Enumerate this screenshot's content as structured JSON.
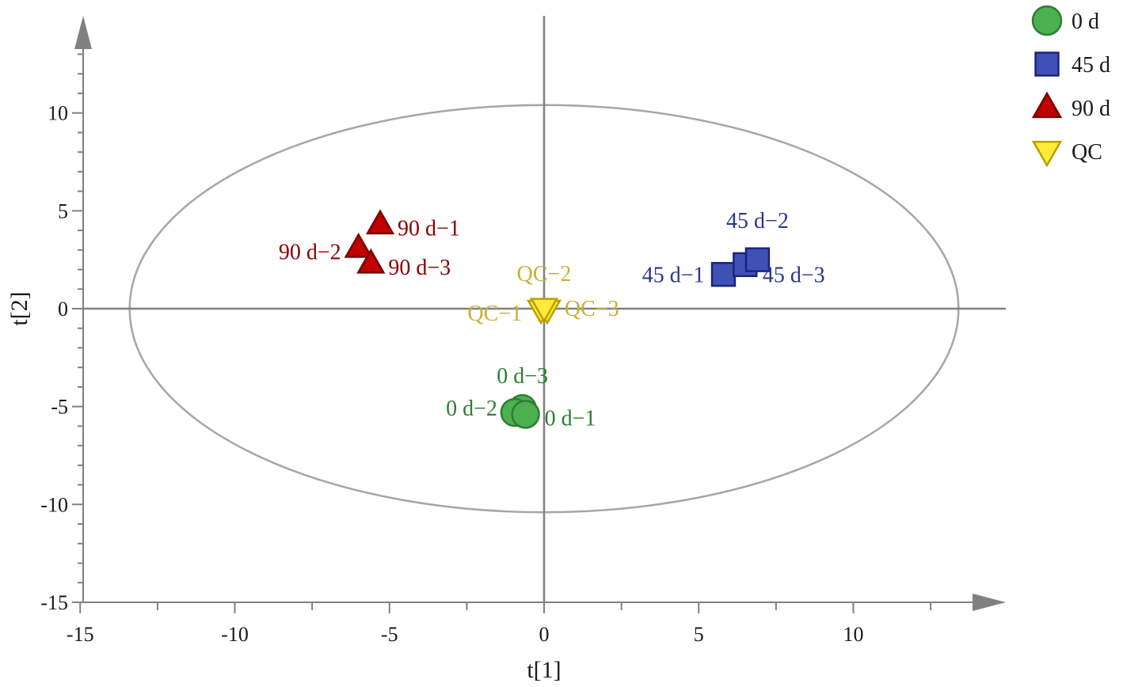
{
  "chart_data": {
    "type": "scatter",
    "title": "",
    "xlabel": "t[1]",
    "ylabel": "t[2]",
    "xlim": [
      -15,
      15
    ],
    "ylim": [
      -15,
      15
    ],
    "x_ticks": [
      -15,
      -10,
      -5,
      0,
      5,
      10
    ],
    "y_ticks": [
      10,
      5,
      0,
      -5,
      -10,
      -15
    ],
    "x_tick_labels": [
      "-15",
      "-10",
      "-5",
      "0",
      "5",
      "10"
    ],
    "y_tick_labels": [
      "10",
      "5",
      "0",
      "-5",
      "-10",
      "-15"
    ],
    "grid": false,
    "legend_position": "top-right",
    "ellipse": {
      "cx": 0,
      "cy": 0,
      "rx": 13.4,
      "ry": 10.4,
      "color": "#a6a6a6"
    },
    "series": [
      {
        "name": "0 d",
        "marker": "circle",
        "color": "#4caf50",
        "edge_color": "#2e7d32",
        "label_color": "#2e7d32",
        "points": [
          {
            "x": -0.6,
            "y": -5.4,
            "label": "0 d−1"
          },
          {
            "x": -0.95,
            "y": -5.3,
            "label": "0 d−2"
          },
          {
            "x": -0.7,
            "y": -5.1,
            "label": "0 d−3"
          }
        ]
      },
      {
        "name": "45 d",
        "marker": "square",
        "color": "#3f51b5",
        "edge_color": "#1a237e",
        "label_color": "#283593",
        "points": [
          {
            "x": 5.8,
            "y": 1.75,
            "label": "45 d−1"
          },
          {
            "x": 6.9,
            "y": 2.5,
            "label": "45 d−2"
          },
          {
            "x": 6.5,
            "y": 2.25,
            "label": "45 d−3"
          }
        ]
      },
      {
        "name": "90 d",
        "marker": "triangle-up",
        "color": "#c00000",
        "edge_color": "#7a0000",
        "label_color": "#8b0000",
        "points": [
          {
            "x": -5.3,
            "y": 4.3,
            "label": "90 d−1"
          },
          {
            "x": -6.0,
            "y": 3.1,
            "label": "90 d−2"
          },
          {
            "x": -5.6,
            "y": 2.3,
            "label": "90 d−3"
          }
        ]
      },
      {
        "name": "QC",
        "marker": "triangle-down",
        "color": "#ffeb3b",
        "edge_color": "#b8a000",
        "label_color": "#c9b037",
        "points": [
          {
            "x": -0.1,
            "y": -0.05,
            "label": "QC−1"
          },
          {
            "x": 0.0,
            "y": 0.05,
            "label": "QC−2"
          },
          {
            "x": 0.1,
            "y": -0.05,
            "label": "QC−3"
          }
        ]
      }
    ]
  }
}
